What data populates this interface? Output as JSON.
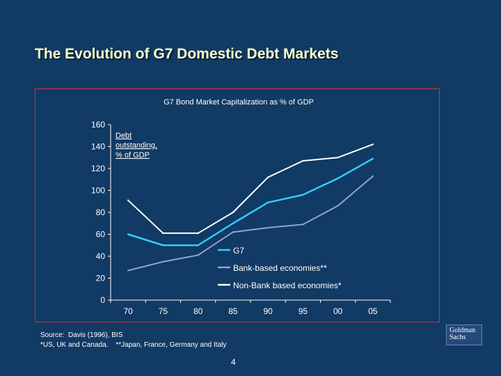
{
  "slide": {
    "title": "The Evolution of G7 Domestic Debt Markets",
    "page_number": "4",
    "source_line1": "Source:  Davis (1996), BIS",
    "source_line2": "*US, UK and Canada.    **Japan, France, Germany and Italy",
    "logo_line1": "Goldman",
    "logo_line2": "Sachs"
  },
  "colors": {
    "background": "#113a64",
    "title": "#ffffcc",
    "frame_border": "#c23a3a",
    "g7": "#33ccff",
    "bank_based": "#8ba5d6",
    "non_bank": "#ffffff"
  },
  "chart_data": {
    "type": "line",
    "title": "G7 Bond Market Capitalization as % of GDP",
    "annotation": "Debt outstanding, % of GDP",
    "annotation_lines": [
      "Debt",
      "outstanding,",
      "% of GDP"
    ],
    "x": [
      70,
      75,
      80,
      85,
      90,
      95,
      100,
      105
    ],
    "x_tick_labels": [
      "70",
      "75",
      "80",
      "85",
      "90",
      "95",
      "00",
      "05"
    ],
    "xlim": [
      67.5,
      107.5
    ],
    "ylim": [
      0,
      160
    ],
    "y_ticks": [
      0,
      20,
      40,
      60,
      80,
      100,
      120,
      140,
      160
    ],
    "grid": false,
    "legend_position": "bottom-right",
    "series": [
      {
        "name": "G7",
        "color": "#33ccff",
        "values": [
          60,
          50,
          50,
          70,
          89,
          96,
          111,
          129
        ]
      },
      {
        "name": "Bank-based economies**",
        "color": "#8ba5d6",
        "values": [
          27,
          35,
          41,
          62,
          66,
          69,
          86,
          113
        ]
      },
      {
        "name": "Non-Bank based economies*",
        "color": "#ffffff",
        "values": [
          91,
          61,
          61,
          80,
          112,
          127,
          130,
          142
        ]
      }
    ]
  }
}
